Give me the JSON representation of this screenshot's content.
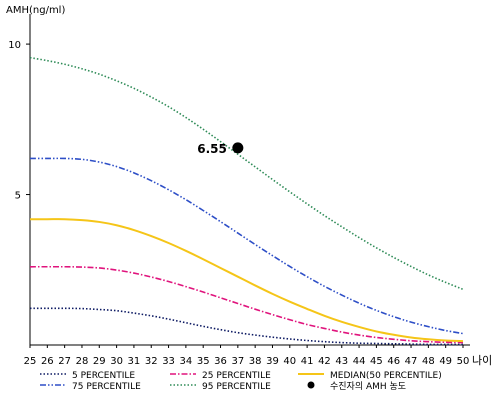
{
  "chart_data": {
    "type": "line",
    "ylabel": "AMH(ng/ml)",
    "xlabel": "나이",
    "xlim": [
      25,
      50
    ],
    "ylim": [
      0,
      11
    ],
    "x_ticks": [
      25,
      26,
      27,
      28,
      29,
      30,
      31,
      32,
      33,
      34,
      35,
      36,
      37,
      38,
      39,
      40,
      41,
      42,
      43,
      44,
      45,
      46,
      47,
      48,
      49,
      50
    ],
    "y_ticks": [
      5,
      10
    ],
    "grid": false,
    "legend_position": "bottom",
    "x": [
      25,
      26,
      27,
      28,
      29,
      30,
      31,
      32,
      33,
      34,
      35,
      36,
      37,
      38,
      39,
      40,
      41,
      42,
      43,
      44,
      45,
      46,
      47,
      48,
      49,
      50
    ],
    "series": [
      {
        "name": "5 PERCENTILE",
        "color": "#0d1a63",
        "dash": "dotted",
        "values": [
          1.22,
          1.22,
          1.22,
          1.21,
          1.18,
          1.14,
          1.06,
          0.97,
          0.86,
          0.74,
          0.62,
          0.51,
          0.41,
          0.33,
          0.26,
          0.2,
          0.15,
          0.11,
          0.08,
          0.06,
          0.05,
          0.04,
          0.03,
          0.02,
          0.02,
          0.02
        ]
      },
      {
        "name": "25 PERCENTILE",
        "color": "#e0147d",
        "dash": "dashdot",
        "values": [
          2.6,
          2.6,
          2.6,
          2.59,
          2.56,
          2.49,
          2.39,
          2.26,
          2.11,
          1.94,
          1.76,
          1.57,
          1.38,
          1.19,
          1.01,
          0.84,
          0.68,
          0.55,
          0.43,
          0.33,
          0.25,
          0.19,
          0.14,
          0.11,
          0.09,
          0.08
        ]
      },
      {
        "name": "MEDIAN(50 PERCENTILE)",
        "color": "#f5c518",
        "dash": "solid",
        "values": [
          4.18,
          4.18,
          4.18,
          4.15,
          4.09,
          3.98,
          3.82,
          3.62,
          3.39,
          3.13,
          2.85,
          2.56,
          2.27,
          1.98,
          1.7,
          1.44,
          1.2,
          0.97,
          0.77,
          0.6,
          0.45,
          0.34,
          0.25,
          0.19,
          0.15,
          0.13
        ]
      },
      {
        "name": "75 PERCENTILE",
        "color": "#2e4fc7",
        "dash": "dashdotdot",
        "values": [
          6.2,
          6.2,
          6.2,
          6.17,
          6.08,
          5.93,
          5.72,
          5.46,
          5.16,
          4.83,
          4.47,
          4.1,
          3.72,
          3.34,
          2.97,
          2.61,
          2.27,
          1.95,
          1.66,
          1.39,
          1.15,
          0.94,
          0.76,
          0.61,
          0.48,
          0.38
        ]
      },
      {
        "name": "95 PERCENTILE",
        "color": "#2e8b57",
        "dash": "dotted",
        "values": [
          9.55,
          9.45,
          9.33,
          9.18,
          9.0,
          8.78,
          8.53,
          8.24,
          7.92,
          7.56,
          7.17,
          6.76,
          6.34,
          5.92,
          5.5,
          5.09,
          4.69,
          4.3,
          3.93,
          3.57,
          3.23,
          2.91,
          2.61,
          2.33,
          2.08,
          1.85
        ]
      }
    ],
    "marker": {
      "name": "수진자의 AMH 농도",
      "x": 37,
      "y": 6.55,
      "label": "6.55",
      "color": "#000000"
    }
  }
}
